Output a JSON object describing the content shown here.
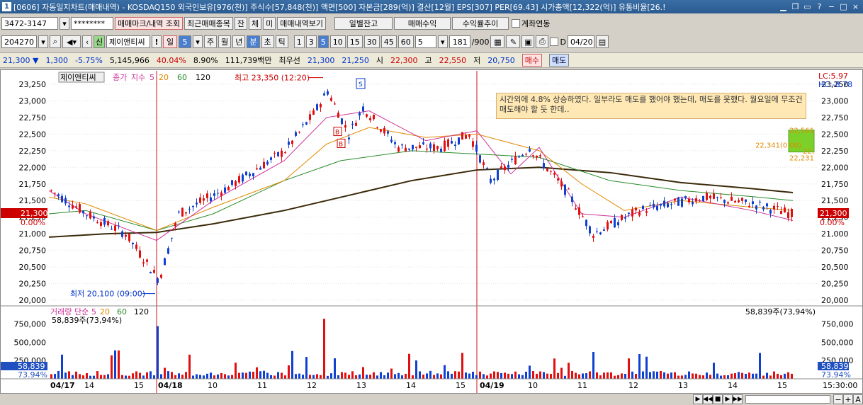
{
  "window": {
    "num": "1",
    "title": "[0606] 자동일지차트(매매내역) - KOSDAQ150 외국인보유[976(천)] 주식수[57,848(천)] 액면[500] 자본금[289(억)] 결산[12월] EPS[307] PER[69.43] 시가총액[12,322(억)] 유통비율[26.!",
    "buttons": [
      "_",
      "□",
      "▫",
      "?",
      "−",
      "□",
      "×"
    ]
  },
  "toolbar1": {
    "account": "3472-3147",
    "password": "********",
    "btn_trade_mark": "매매마크/내역 조회",
    "btn_recent": "최근매매종목",
    "btn_jan": "잔",
    "btn_che": "체",
    "btn_mi": "미",
    "btn_history": "매매내역보기",
    "btn_daily": "일별잔고",
    "btn_profit": "매매수익",
    "btn_rate": "수익률추이",
    "chk_account": "계좌연동"
  },
  "toolbar2": {
    "code": "204270",
    "credit": "신",
    "name": "제이앤티씨",
    "excl": "!",
    "period_day": "일",
    "period_value": "5",
    "periods": [
      "주",
      "월",
      "년",
      "분",
      "초",
      "틱"
    ],
    "minutes": [
      "1",
      "3",
      "5",
      "10",
      "15",
      "30",
      "45",
      "60"
    ],
    "count": "5",
    "range": "181",
    "range_total": "/900",
    "date_label": "D",
    "date": "04/20"
  },
  "quote": {
    "price": "21,300",
    "change": "1,300",
    "rate": "-5.75%",
    "volume": "5,145,966",
    "vol_ratio": "40.04%",
    "turnover": "8.90%",
    "amount": "111,739백만",
    "best_label": "최우선",
    "best_ask": "21,300",
    "best_bid": "21,250",
    "open_label": "시",
    "open": "22,300",
    "high_label": "고",
    "high": "22,550",
    "low_label": "저",
    "low": "20,750",
    "buy": "매수",
    "sell": "매도"
  },
  "chart_data": {
    "type": "candlestick",
    "legend_name": "제이앤티씨",
    "legend_items": [
      "종가",
      "지수",
      "5",
      "20",
      "60",
      "120"
    ],
    "y_ticks": [
      "23,250",
      "23,000",
      "22,750",
      "22,500",
      "22,250",
      "22,000",
      "21,750",
      "21,500",
      "21,250",
      "21,000",
      "20,750",
      "20,500",
      "20,250",
      "20,000"
    ],
    "ylim": [
      20000,
      23250
    ],
    "right_labels": {
      "lc": "LC:5.97",
      "hc": "HC:-8.78",
      "current": "21,300",
      "pct": "0.00%"
    },
    "left_labels": {
      "current": "21,300",
      "pct": "0.00%"
    },
    "annotations": {
      "high": "최고 23,350 (12:20)",
      "low": "최저 20,100 (09:00)",
      "mark_b1": "B",
      "mark_b2": "B",
      "mark_s": "S",
      "box_high": "22,561",
      "box_mid": "22,341(0.00)",
      "box_mid2": "22,",
      "box_low": "22,231"
    },
    "note": "시간외에 4.8% 상승하였다. 일부라도 매도를 했어야 했는데, 매도를 못했다. 월요일에 무조건 매도해야 할 듯 한데..",
    "volume_legend": [
      "거래량",
      "단순",
      "5",
      "20",
      "60",
      "120"
    ],
    "volume_value": "58,839주(73,94%)",
    "volume_right": "58,839주(73,94%)",
    "vol_ticks": [
      "750,000",
      "500,000",
      "250,000"
    ],
    "vol_current": "58,839",
    "vol_pct": "73.94%",
    "x_labels": [
      "04/17",
      "14",
      "15",
      "04/18",
      "10",
      "11",
      "12",
      "13",
      "14",
      "15",
      "04/19",
      "10",
      "11",
      "12",
      "13",
      "14",
      "15"
    ],
    "time": "15:30:00"
  }
}
